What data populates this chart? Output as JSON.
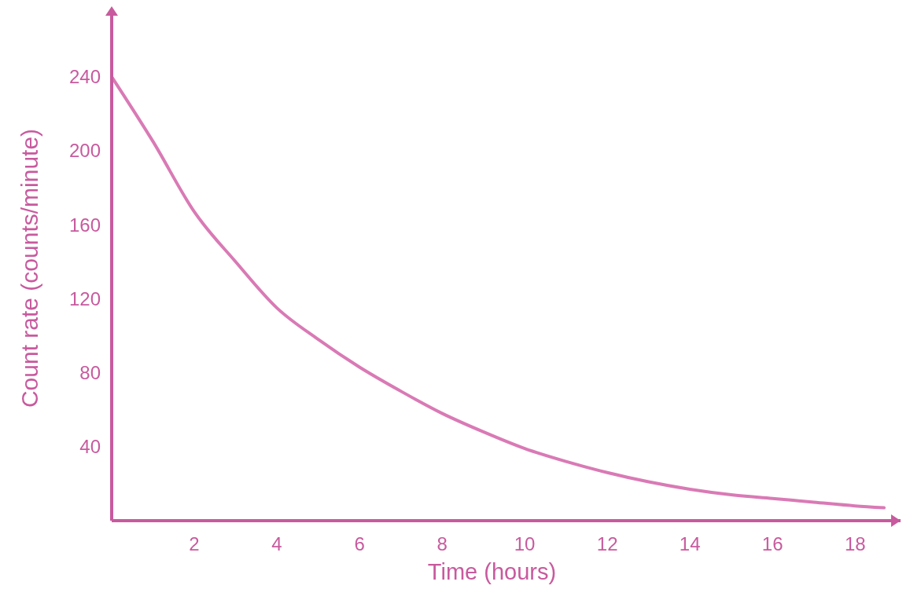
{
  "chart_data": {
    "type": "line",
    "xlabel": "Time (hours)",
    "ylabel": "Count rate (counts/minute)",
    "xlim": [
      0,
      19.1
    ],
    "ylim": [
      0,
      273
    ],
    "xticks": [
      2,
      4,
      6,
      8,
      10,
      12,
      14,
      16,
      18
    ],
    "yticks": [
      40,
      80,
      120,
      160,
      200,
      240
    ],
    "grid": false,
    "marker": "none",
    "line_style": "solid",
    "series": [
      {
        "color": "#d97ab5",
        "x": [
          0,
          1,
          2,
          3,
          4,
          5,
          6,
          7,
          8,
          9,
          10,
          11,
          12,
          13,
          14,
          15,
          16,
          17,
          18,
          18.7
        ],
        "values": [
          240,
          205,
          167,
          140,
          115,
          98,
          83,
          70,
          58,
          48,
          39,
          32,
          26,
          21,
          17,
          14,
          12,
          10,
          8,
          7
        ]
      }
    ]
  }
}
